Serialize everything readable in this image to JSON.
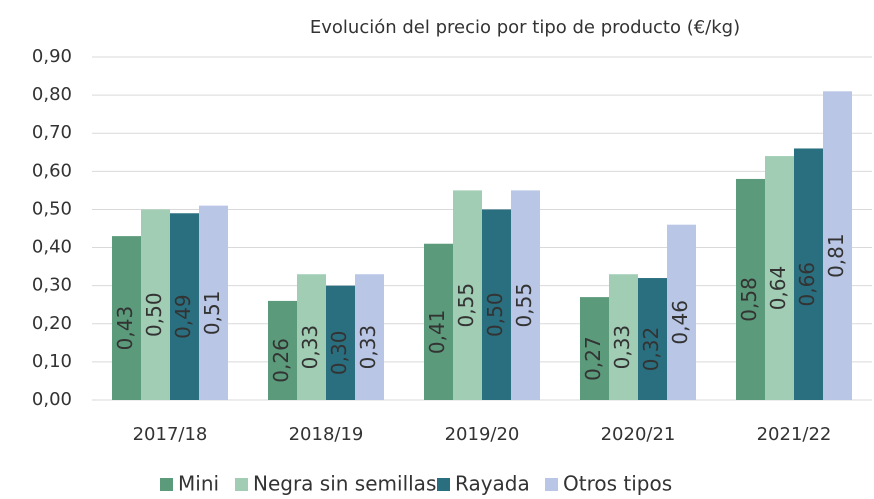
{
  "chart_data": {
    "type": "bar",
    "title": "Evolución del precio por tipo de producto (€/kg)",
    "categories": [
      "2017/18",
      "2018/19",
      "2019/20",
      "2020/21",
      "2021/22"
    ],
    "series": [
      {
        "name": "Mini",
        "color": "#5b9a7a",
        "values": [
          0.43,
          0.26,
          0.41,
          0.27,
          0.58
        ],
        "value_labels": [
          "0,43",
          "0,26",
          "0,41",
          "0,27",
          "0,58"
        ]
      },
      {
        "name": "Negra sin semillas",
        "color": "#a0cdb4",
        "values": [
          0.5,
          0.33,
          0.55,
          0.33,
          0.64
        ],
        "value_labels": [
          "0,50",
          "0,33",
          "0,55",
          "0,33",
          "0,64"
        ]
      },
      {
        "name": "Rayada",
        "color": "#2a6f7f",
        "values": [
          0.49,
          0.3,
          0.5,
          0.32,
          0.66
        ],
        "value_labels": [
          "0,49",
          "0,30",
          "0,50",
          "0,32",
          "0,66"
        ]
      },
      {
        "name": "Otros tipos",
        "color": "#b9c6e6",
        "values": [
          0.51,
          0.33,
          0.55,
          0.46,
          0.81
        ],
        "value_labels": [
          "0,51",
          "0,33",
          "0,55",
          "0,46",
          "0,81"
        ]
      }
    ],
    "ylim": [
      0,
      0.9
    ],
    "yticks": [
      {
        "value": 0,
        "label": "0,00"
      },
      {
        "value": 0.1,
        "label": "0,10"
      },
      {
        "value": 0.2,
        "label": "0,20"
      },
      {
        "value": 0.3,
        "label": "0,30"
      },
      {
        "value": 0.4,
        "label": "0,40"
      },
      {
        "value": 0.5,
        "label": "0,50"
      },
      {
        "value": 0.6,
        "label": "0,60"
      },
      {
        "value": 0.7,
        "label": "0,70"
      },
      {
        "value": 0.8,
        "label": "0,80"
      },
      {
        "value": 0.9,
        "label": "0,90"
      }
    ],
    "grid": true,
    "legend": "bottom"
  }
}
